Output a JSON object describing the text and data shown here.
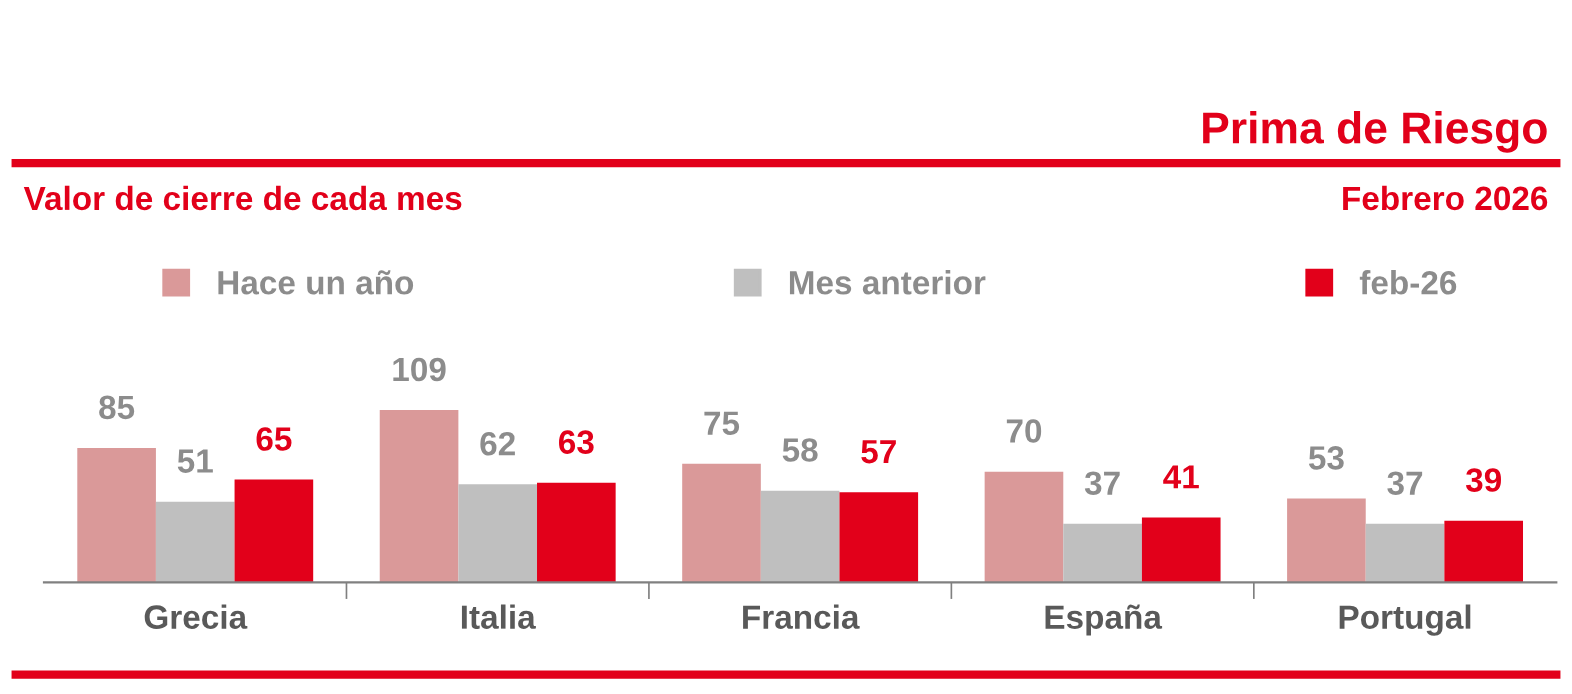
{
  "chart_data": {
    "type": "bar",
    "title": "Prima de Riesgo",
    "subtitle": "Valor de cierre de cada mes",
    "annotations": [
      "Febrero 2026"
    ],
    "categories": [
      "Grecia",
      "Italia",
      "Francia",
      "España",
      "Portugal"
    ],
    "series": [
      {
        "name": "Hace un año",
        "color": "#da9999",
        "values": [
          85,
          109,
          75,
          70,
          53
        ]
      },
      {
        "name": "Mes anterior",
        "color": "#bfbfbf",
        "values": [
          51,
          62,
          58,
          37,
          37
        ]
      },
      {
        "name": "feb-26",
        "color": "#e2001a",
        "values": [
          65,
          63,
          57,
          41,
          39
        ]
      }
    ],
    "data_labels": true,
    "legend": "top",
    "grid": false
  }
}
